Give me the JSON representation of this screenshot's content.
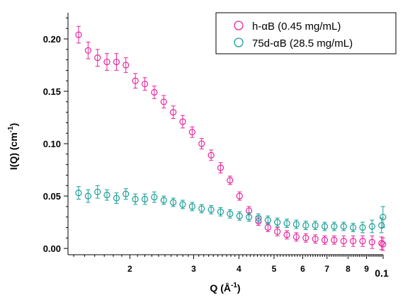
{
  "chart_data": {
    "type": "scatter",
    "x_scale": "log",
    "xlabel": "Q (Å",
    "xlabel_sup": "-1",
    "xlabel_tail": ")",
    "ylabel": "I(Q) (cm",
    "ylabel_sup": "-1",
    "ylabel_tail": ")",
    "xlim": [
      0.0135,
      0.1
    ],
    "ylim": [
      -0.006,
      0.225
    ],
    "x_ticks": [
      {
        "value": 0.02,
        "label": "2"
      },
      {
        "value": 0.03,
        "label": "3"
      },
      {
        "value": 0.04,
        "label": "4"
      },
      {
        "value": 0.05,
        "label": "5"
      },
      {
        "value": 0.06,
        "label": "6"
      },
      {
        "value": 0.07,
        "label": "7"
      },
      {
        "value": 0.08,
        "label": "8"
      },
      {
        "value": 0.09,
        "label": "9"
      },
      {
        "value": 0.1,
        "label": "0.1"
      }
    ],
    "y_ticks": [
      {
        "value": 0.0,
        "label": "0.00"
      },
      {
        "value": 0.05,
        "label": "0.05"
      },
      {
        "value": 0.1,
        "label": "0.10"
      },
      {
        "value": 0.15,
        "label": "0.15"
      },
      {
        "value": 0.2,
        "label": "0.20"
      }
    ],
    "grid": false,
    "legend_position": "top-right",
    "series": [
      {
        "name": "h-αB (0.45 mg/mL)",
        "color": "#e8259e",
        "marker": "open-circle",
        "x": [
          0.01444,
          0.01534,
          0.01629,
          0.01729,
          0.01837,
          0.0195,
          0.02071,
          0.022,
          0.02336,
          0.02481,
          0.02635,
          0.02798,
          0.02972,
          0.03156,
          0.03352,
          0.0356,
          0.0378,
          0.04015,
          0.04264,
          0.04528,
          0.04809,
          0.05107,
          0.05424,
          0.0576,
          0.06117,
          0.06497,
          0.069,
          0.07327,
          0.07782,
          0.08264,
          0.08777,
          0.09321,
          0.09898,
          0.0999
        ],
        "y": [
          0.204,
          0.189,
          0.182,
          0.178,
          0.178,
          0.175,
          0.16,
          0.157,
          0.149,
          0.14,
          0.13,
          0.121,
          0.111,
          0.1,
          0.089,
          0.077,
          0.065,
          0.05,
          0.036,
          0.026,
          0.02,
          0.016,
          0.013,
          0.011,
          0.01,
          0.009,
          0.008,
          0.008,
          0.007,
          0.007,
          0.007,
          0.006,
          0.005,
          0.004
        ],
        "error": [
          0.008,
          0.008,
          0.008,
          0.008,
          0.008,
          0.007,
          0.007,
          0.006,
          0.006,
          0.006,
          0.006,
          0.006,
          0.005,
          0.005,
          0.005,
          0.005,
          0.004,
          0.004,
          0.004,
          0.004,
          0.004,
          0.004,
          0.004,
          0.004,
          0.004,
          0.004,
          0.004,
          0.004,
          0.005,
          0.005,
          0.005,
          0.006,
          0.006,
          0.006
        ]
      },
      {
        "name": "75d-αB (28.5 mg/mL)",
        "color": "#1a9e96",
        "marker": "open-circle",
        "x": [
          0.01444,
          0.01534,
          0.01629,
          0.01729,
          0.01837,
          0.0195,
          0.02071,
          0.022,
          0.02336,
          0.02481,
          0.02635,
          0.02798,
          0.02972,
          0.03156,
          0.03352,
          0.0356,
          0.0378,
          0.04015,
          0.04264,
          0.04528,
          0.04809,
          0.05107,
          0.05424,
          0.0576,
          0.06117,
          0.06497,
          0.069,
          0.07327,
          0.07782,
          0.08264,
          0.08777,
          0.09321,
          0.09898,
          0.0999
        ],
        "y": [
          0.053,
          0.05,
          0.054,
          0.051,
          0.048,
          0.052,
          0.047,
          0.047,
          0.049,
          0.046,
          0.044,
          0.042,
          0.04,
          0.038,
          0.037,
          0.035,
          0.033,
          0.031,
          0.03,
          0.029,
          0.027,
          0.025,
          0.024,
          0.023,
          0.022,
          0.022,
          0.021,
          0.021,
          0.021,
          0.02,
          0.02,
          0.021,
          0.022,
          0.03
        ],
        "error": [
          0.006,
          0.006,
          0.006,
          0.005,
          0.005,
          0.005,
          0.005,
          0.005,
          0.005,
          0.004,
          0.004,
          0.004,
          0.004,
          0.004,
          0.004,
          0.004,
          0.004,
          0.004,
          0.004,
          0.004,
          0.004,
          0.004,
          0.004,
          0.004,
          0.004,
          0.004,
          0.004,
          0.004,
          0.004,
          0.004,
          0.005,
          0.006,
          0.007,
          0.01
        ]
      }
    ]
  }
}
